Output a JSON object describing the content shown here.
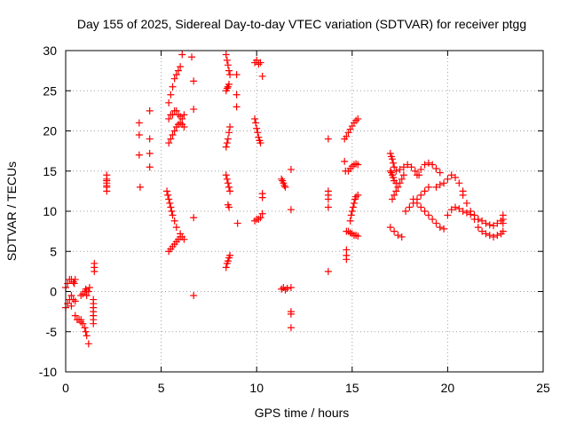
{
  "chart_data": {
    "type": "scatter",
    "title": "Day 155 of 2025, Sidereal Day-to-day VTEC variation (SDTVAR) for receiver ptgg",
    "xlabel": "GPS time / hours",
    "ylabel": "SDTVAR / TECUs",
    "xlim": [
      0,
      25
    ],
    "ylim": [
      -10,
      30
    ],
    "x_ticks": [
      0,
      5,
      10,
      15,
      20,
      25
    ],
    "y_ticks": [
      -10,
      -5,
      0,
      5,
      10,
      15,
      20,
      25,
      30
    ],
    "x_tick_labels": [
      "0",
      "5",
      "10",
      "15",
      "20",
      "25"
    ],
    "y_tick_labels": [
      "-10",
      "-5",
      "0",
      "5",
      "10",
      "15",
      "20",
      "25",
      "30"
    ],
    "grid": true,
    "marker": "plus",
    "color": "#ff0000",
    "series": [
      {
        "name": "s01",
        "x": [
          0.0,
          0.1,
          0.2,
          0.3
        ],
        "y": [
          0.5,
          1.0,
          1.5,
          1.5
        ]
      },
      {
        "name": "s02",
        "x": [
          0.0,
          0.1,
          0.2,
          0.3
        ],
        "y": [
          -2.0,
          -1.5,
          -1.0,
          -1.8
        ]
      },
      {
        "name": "s03",
        "x": [
          0.4,
          0.45,
          0.5
        ],
        "y": [
          1.2,
          1.0,
          1.5
        ]
      },
      {
        "name": "s04",
        "x": [
          0.3,
          0.4,
          0.5
        ],
        "y": [
          -0.5,
          -1.0,
          -1.2
        ]
      },
      {
        "name": "s05",
        "x": [
          0.5,
          0.6,
          0.7,
          0.8
        ],
        "y": [
          -3.0,
          -3.5,
          -3.5,
          -3.8
        ]
      },
      {
        "name": "s06",
        "x": [
          0.8,
          0.9,
          1.0,
          1.05,
          1.1
        ],
        "y": [
          -0.5,
          -0.3,
          0.0,
          0.3,
          0.0
        ]
      },
      {
        "name": "s07",
        "x": [
          0.8,
          0.9,
          1.0,
          1.05,
          1.1
        ],
        "y": [
          -3.5,
          -4.0,
          -4.5,
          -5.0,
          -5.5
        ]
      },
      {
        "name": "s08",
        "x": [
          1.1,
          1.2,
          1.25
        ],
        "y": [
          -0.5,
          0.0,
          0.5
        ]
      },
      {
        "name": "s09",
        "x": [
          1.2
        ],
        "y": [
          -6.5
        ]
      },
      {
        "name": "s10",
        "x": [
          1.45,
          1.45,
          1.45,
          1.45,
          1.45,
          1.45,
          1.45
        ],
        "y": [
          -4.0,
          -3.5,
          -3.0,
          -2.5,
          -2.0,
          -1.5,
          -1.0
        ]
      },
      {
        "name": "s11",
        "x": [
          1.5,
          1.5,
          1.5
        ],
        "y": [
          2.5,
          3.0,
          3.5
        ]
      },
      {
        "name": "s12",
        "x": [
          2.15,
          2.15,
          2.15,
          2.15,
          2.15,
          2.15,
          2.15
        ],
        "y": [
          12.5,
          13.0,
          13.5,
          14.0,
          14.5,
          13.8,
          13.2
        ]
      },
      {
        "name": "s13",
        "x": [
          3.85,
          3.85,
          3.85,
          3.9
        ],
        "y": [
          21.0,
          19.5,
          17.0,
          13.0
        ]
      },
      {
        "name": "s14",
        "x": [
          4.4,
          4.4,
          4.4,
          4.4
        ],
        "y": [
          22.5,
          19.0,
          17.2,
          15.5
        ]
      },
      {
        "name": "s15",
        "x": [
          5.4,
          5.5,
          5.6,
          5.7,
          5.8,
          5.9,
          6.0,
          6.1
        ],
        "y": [
          23.5,
          24.5,
          25.5,
          26.5,
          27.0,
          27.5,
          28.0,
          29.5
        ]
      },
      {
        "name": "s16",
        "x": [
          5.4,
          5.5,
          5.6,
          5.7,
          5.8,
          5.9,
          6.0,
          6.1,
          6.2
        ],
        "y": [
          21.5,
          22.0,
          22.0,
          22.5,
          22.5,
          22.0,
          21.8,
          21.5,
          22.0
        ]
      },
      {
        "name": "s17",
        "x": [
          5.4,
          5.5,
          5.6,
          5.7,
          5.8,
          5.9,
          6.0,
          6.1,
          6.2
        ],
        "y": [
          18.5,
          19.0,
          19.5,
          20.0,
          20.5,
          20.8,
          21.0,
          20.8,
          20.5
        ]
      },
      {
        "name": "s18",
        "x": [
          5.3,
          5.35,
          5.4,
          5.45,
          5.5,
          5.55,
          5.6,
          5.7,
          5.8,
          6.0,
          6.1,
          6.2
        ],
        "y": [
          12.5,
          12.0,
          11.5,
          11.0,
          10.5,
          10.0,
          9.5,
          8.8,
          8.0,
          7.2,
          6.8,
          6.5
        ]
      },
      {
        "name": "s19",
        "x": [
          5.4,
          5.5,
          5.6,
          5.7,
          5.8,
          5.9,
          6.0
        ],
        "y": [
          5.0,
          5.3,
          5.6,
          5.9,
          6.2,
          6.5,
          6.8
        ]
      },
      {
        "name": "s20",
        "x": [
          6.6,
          6.7,
          6.7,
          6.7,
          6.7
        ],
        "y": [
          29.2,
          26.2,
          22.7,
          9.2,
          -0.5
        ]
      },
      {
        "name": "s21",
        "x": [
          8.4,
          8.45,
          8.5,
          8.55,
          8.6
        ],
        "y": [
          29.5,
          28.8,
          28.2,
          27.5,
          27.0
        ]
      },
      {
        "name": "s22",
        "x": [
          8.4,
          8.45,
          8.5,
          8.55
        ],
        "y": [
          25.0,
          25.3,
          25.5,
          25.8
        ]
      },
      {
        "name": "s23",
        "x": [
          8.4,
          8.45,
          8.5,
          8.55,
          8.6
        ],
        "y": [
          18.0,
          18.5,
          19.0,
          19.8,
          20.5
        ]
      },
      {
        "name": "s24",
        "x": [
          8.4,
          8.45,
          8.5,
          8.55,
          8.6
        ],
        "y": [
          14.5,
          14.0,
          13.5,
          13.0,
          12.5
        ]
      },
      {
        "name": "s25",
        "x": [
          8.5,
          8.55
        ],
        "y": [
          10.8,
          10.5
        ]
      },
      {
        "name": "s26",
        "x": [
          8.4,
          8.45,
          8.5,
          8.55,
          8.6
        ],
        "y": [
          3.0,
          3.5,
          3.8,
          4.2,
          4.5
        ]
      },
      {
        "name": "s27",
        "x": [
          8.95,
          8.95,
          8.95,
          9.0
        ],
        "y": [
          27.0,
          24.5,
          23.0,
          8.5
        ]
      },
      {
        "name": "s28",
        "x": [
          9.9,
          10.0,
          10.1,
          10.2
        ],
        "y": [
          28.5,
          28.8,
          28.3,
          28.5
        ]
      },
      {
        "name": "s29",
        "x": [
          9.9,
          9.95,
          10.0,
          10.05,
          10.1,
          10.15,
          10.2
        ],
        "y": [
          21.5,
          21.0,
          20.3,
          19.8,
          19.2,
          18.8,
          18.5
        ]
      },
      {
        "name": "s30",
        "x": [
          9.9,
          10.0,
          10.1,
          10.2
        ],
        "y": [
          8.8,
          9.0,
          9.0,
          9.2
        ]
      },
      {
        "name": "s31",
        "x": [
          10.3,
          10.3,
          10.3,
          10.3
        ],
        "y": [
          26.8,
          12.2,
          11.7,
          9.7
        ]
      },
      {
        "name": "s32",
        "x": [
          11.3,
          11.35,
          11.4,
          11.45,
          11.5
        ],
        "y": [
          14.0,
          13.8,
          13.5,
          13.2,
          13.0
        ]
      },
      {
        "name": "s33",
        "x": [
          11.3,
          11.4,
          11.5,
          11.6
        ],
        "y": [
          0.3,
          0.5,
          0.2,
          0.4
        ]
      },
      {
        "name": "s34",
        "x": [
          11.8,
          11.8,
          11.8,
          11.8,
          11.8,
          11.8
        ],
        "y": [
          15.2,
          10.2,
          0.5,
          -2.5,
          -2.8,
          -4.5
        ]
      },
      {
        "name": "s35",
        "x": [
          13.75,
          13.75,
          13.75,
          13.75,
          13.75,
          13.75
        ],
        "y": [
          19.0,
          12.5,
          12.0,
          11.5,
          10.5,
          2.5
        ]
      },
      {
        "name": "s36",
        "x": [
          14.6,
          14.7,
          14.8,
          14.9,
          15.0,
          15.1,
          15.2,
          15.3
        ],
        "y": [
          19.0,
          19.3,
          19.8,
          20.2,
          20.6,
          21.0,
          21.3,
          21.5
        ]
      },
      {
        "name": "s37",
        "x": [
          14.6,
          14.65,
          14.7,
          14.7,
          14.7
        ],
        "y": [
          16.2,
          15.0,
          5.2,
          4.5,
          4.0
        ]
      },
      {
        "name": "s38",
        "x": [
          14.8,
          14.9,
          15.0,
          15.1,
          15.2,
          15.3
        ],
        "y": [
          15.0,
          15.3,
          15.6,
          15.8,
          15.9,
          15.8
        ]
      },
      {
        "name": "s39",
        "x": [
          14.9,
          14.95,
          15.0,
          15.05,
          15.1,
          15.15,
          15.2,
          15.3
        ],
        "y": [
          8.8,
          9.5,
          10.0,
          10.5,
          11.0,
          11.5,
          11.8,
          12.0
        ]
      },
      {
        "name": "s40",
        "x": [
          14.7,
          14.8,
          14.9,
          15.0,
          15.1,
          15.2,
          15.3
        ],
        "y": [
          7.5,
          7.5,
          7.3,
          7.2,
          7.0,
          7.0,
          6.9
        ]
      },
      {
        "name": "s41",
        "x": [
          17.0,
          17.05,
          17.1,
          17.15,
          17.2
        ],
        "y": [
          17.2,
          16.8,
          16.5,
          16.0,
          15.5
        ]
      },
      {
        "name": "s42",
        "x": [
          17.0,
          17.05,
          17.1,
          17.15,
          17.2,
          17.3
        ],
        "y": [
          15.0,
          14.8,
          14.5,
          14.2,
          13.8,
          13.5
        ]
      },
      {
        "name": "s43",
        "x": [
          17.1,
          17.2,
          17.3,
          17.4,
          17.5,
          17.6,
          17.7
        ],
        "y": [
          11.5,
          12.0,
          12.5,
          13.0,
          13.5,
          14.0,
          14.5
        ]
      },
      {
        "name": "s44",
        "x": [
          17.0,
          17.2,
          17.4,
          17.6
        ],
        "y": [
          8.0,
          7.5,
          7.0,
          6.8
        ]
      },
      {
        "name": "s45",
        "x": [
          17.3,
          17.5,
          17.7,
          17.9,
          18.1,
          18.3,
          18.5
        ],
        "y": [
          15.0,
          15.2,
          15.5,
          15.8,
          15.5,
          15.0,
          14.5
        ]
      },
      {
        "name": "s46",
        "x": [
          17.8,
          18.0,
          18.2,
          18.4,
          18.6,
          18.8,
          19.0
        ],
        "y": [
          10.0,
          10.5,
          11.0,
          11.5,
          12.0,
          12.5,
          13.0
        ]
      },
      {
        "name": "s47",
        "x": [
          18.4,
          18.6,
          18.8,
          19.0,
          19.2,
          19.4,
          19.6
        ],
        "y": [
          14.5,
          15.2,
          15.8,
          16.0,
          15.8,
          15.3,
          14.8
        ]
      },
      {
        "name": "s48",
        "x": [
          18.2,
          18.4,
          18.6,
          18.8,
          19.0,
          19.2,
          19.4,
          19.6,
          19.8
        ],
        "y": [
          11.5,
          11.0,
          10.5,
          10.0,
          9.5,
          9.0,
          8.5,
          8.0,
          7.8
        ]
      },
      {
        "name": "s49",
        "x": [
          19.4,
          19.6,
          19.8,
          20.0,
          20.2,
          20.4,
          20.6,
          20.8
        ],
        "y": [
          13.0,
          13.3,
          13.5,
          14.0,
          14.5,
          14.2,
          13.5,
          12.5
        ]
      },
      {
        "name": "s50",
        "x": [
          20.0,
          20.2,
          20.4,
          20.6,
          20.8,
          21.0,
          21.2
        ],
        "y": [
          9.5,
          10.2,
          10.5,
          10.3,
          10.0,
          9.8,
          9.6
        ]
      },
      {
        "name": "s51",
        "x": [
          20.8,
          21.0,
          21.2,
          21.4,
          21.6
        ],
        "y": [
          12.0,
          11.0,
          10.0,
          9.5,
          9.0
        ]
      },
      {
        "name": "s52",
        "x": [
          21.4,
          21.6,
          21.8,
          22.0,
          22.2,
          22.4,
          22.6,
          22.8
        ],
        "y": [
          9.0,
          9.0,
          8.8,
          8.5,
          8.3,
          8.2,
          8.5,
          8.8
        ]
      },
      {
        "name": "s53",
        "x": [
          21.6,
          21.8,
          22.0,
          22.2,
          22.4,
          22.6,
          22.8
        ],
        "y": [
          8.0,
          7.5,
          7.2,
          7.0,
          6.8,
          7.0,
          7.2
        ]
      },
      {
        "name": "s54",
        "x": [
          22.9,
          22.9,
          22.9,
          22.9
        ],
        "y": [
          9.5,
          9.0,
          8.5,
          7.5
        ]
      }
    ]
  }
}
